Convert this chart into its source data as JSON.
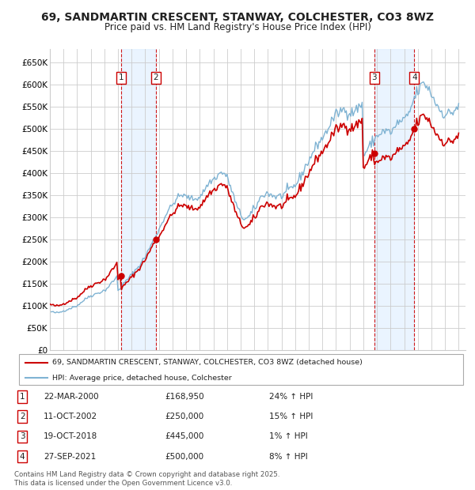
{
  "title": "69, SANDMARTIN CRESCENT, STANWAY, COLCHESTER, CO3 8WZ",
  "subtitle": "Price paid vs. HM Land Registry's House Price Index (HPI)",
  "ylim": [
    0,
    680000
  ],
  "yticks": [
    0,
    50000,
    100000,
    150000,
    200000,
    250000,
    300000,
    350000,
    400000,
    450000,
    500000,
    550000,
    600000,
    650000
  ],
  "ytick_labels": [
    "£0",
    "£50K",
    "£100K",
    "£150K",
    "£200K",
    "£250K",
    "£300K",
    "£350K",
    "£400K",
    "£450K",
    "£500K",
    "£550K",
    "£600K",
    "£650K"
  ],
  "xlim_start": 1995.0,
  "xlim_end": 2025.5,
  "xticks": [
    1995,
    1996,
    1997,
    1998,
    1999,
    2000,
    2001,
    2002,
    2003,
    2004,
    2005,
    2006,
    2007,
    2008,
    2009,
    2010,
    2011,
    2012,
    2013,
    2014,
    2015,
    2016,
    2017,
    2018,
    2019,
    2020,
    2021,
    2022,
    2023,
    2024,
    2025
  ],
  "background_color": "#ffffff",
  "grid_color": "#cccccc",
  "sale_color": "#cc0000",
  "hpi_color": "#7fb3d3",
  "sale_label": "69, SANDMARTIN CRESCENT, STANWAY, COLCHESTER, CO3 8WZ (detached house)",
  "hpi_label": "HPI: Average price, detached house, Colchester",
  "transactions": [
    {
      "num": 1,
      "date": "22-MAR-2000",
      "year": 2000.22,
      "price": 168950,
      "hpi_pct": "24%",
      "dir": "↑"
    },
    {
      "num": 2,
      "date": "11-OCT-2002",
      "year": 2002.78,
      "price": 250000,
      "hpi_pct": "15%",
      "dir": "↑"
    },
    {
      "num": 3,
      "date": "19-OCT-2018",
      "year": 2018.8,
      "price": 445000,
      "hpi_pct": "1%",
      "dir": "↑"
    },
    {
      "num": 4,
      "date": "27-SEP-2021",
      "year": 2021.74,
      "price": 500000,
      "hpi_pct": "8%",
      "dir": "↑"
    }
  ],
  "footnote": "Contains HM Land Registry data © Crown copyright and database right 2025.\nThis data is licensed under the Open Government Licence v3.0.",
  "hpi_data_monthly": {
    "start_year": 1995,
    "start_month": 1,
    "values": [
      88000,
      87000,
      86500,
      86000,
      85500,
      85000,
      85000,
      85000,
      85500,
      86000,
      87000,
      88000,
      89000,
      90000,
      91000,
      92000,
      93000,
      94000,
      95000,
      96000,
      97000,
      98000,
      99000,
      100000,
      101000,
      103000,
      105000,
      107000,
      109000,
      111000,
      113000,
      115000,
      117000,
      119000,
      121000,
      122000,
      123000,
      124000,
      125000,
      126000,
      127000,
      128000,
      129000,
      130000,
      131000,
      132000,
      133000,
      134000,
      135000,
      137000,
      139000,
      142000,
      145000,
      148000,
      151000,
      154000,
      157000,
      160000,
      163000,
      166000,
      136000,
      138000,
      141000,
      144000,
      147000,
      150000,
      153000,
      156000,
      159000,
      162000,
      165000,
      168000,
      171000,
      174000,
      177000,
      180000,
      183000,
      186000,
      189000,
      192000,
      196000,
      200000,
      204000,
      208000,
      212000,
      217000,
      222000,
      227000,
      232000,
      237000,
      242000,
      247000,
      252000,
      257000,
      262000,
      267000,
      272000,
      278000,
      283000,
      289000,
      294000,
      300000,
      305000,
      310000,
      315000,
      319000,
      322000,
      325000,
      328000,
      332000,
      336000,
      340000,
      343000,
      346000,
      348000,
      349000,
      350000,
      350000,
      349000,
      348000,
      347000,
      346000,
      345000,
      344000,
      343000,
      342000,
      342000,
      342000,
      342000,
      343000,
      344000,
      345000,
      347000,
      350000,
      353000,
      357000,
      361000,
      366000,
      370000,
      374000,
      377000,
      380000,
      382000,
      384000,
      386000,
      388000,
      390000,
      392000,
      395000,
      398000,
      400000,
      401000,
      400000,
      399000,
      398000,
      395000,
      390000,
      384000,
      377000,
      370000,
      362000,
      354000,
      346000,
      338000,
      330000,
      322000,
      316000,
      311000,
      307000,
      303000,
      300000,
      298000,
      297000,
      297000,
      298000,
      300000,
      303000,
      307000,
      311000,
      315000,
      319000,
      323000,
      327000,
      332000,
      337000,
      342000,
      346000,
      349000,
      351000,
      353000,
      354000,
      354000,
      354000,
      353000,
      352000,
      351000,
      350000,
      349000,
      348000,
      347000,
      347000,
      347000,
      347000,
      348000,
      349000,
      350000,
      352000,
      354000,
      356000,
      358000,
      360000,
      362000,
      364000,
      366000,
      368000,
      370000,
      373000,
      376000,
      380000,
      384000,
      389000,
      394000,
      399000,
      404000,
      409000,
      414000,
      419000,
      423000,
      428000,
      433000,
      438000,
      443000,
      448000,
      453000,
      458000,
      462000,
      466000,
      470000,
      473000,
      476000,
      479000,
      483000,
      487000,
      491000,
      496000,
      501000,
      506000,
      511000,
      516000,
      521000,
      525000,
      529000,
      532000,
      534000,
      536000,
      538000,
      540000,
      542000,
      543000,
      543000,
      542000,
      541000,
      539000,
      537000,
      536000,
      536000,
      537000,
      538000,
      540000,
      542000,
      544000,
      546000,
      549000,
      552000,
      554000,
      557000,
      440000,
      443000,
      447000,
      451000,
      455000,
      458000,
      462000,
      466000,
      470000,
      474000,
      477000,
      480000,
      483000,
      486000,
      488000,
      490000,
      492000,
      493000,
      494000,
      494000,
      494000,
      494000,
      493000,
      493000,
      493000,
      494000,
      496000,
      499000,
      503000,
      507000,
      511000,
      514000,
      516000,
      517000,
      518000,
      518000,
      519000,
      521000,
      524000,
      529000,
      534000,
      540000,
      547000,
      555000,
      562000,
      569000,
      575000,
      580000,
      584000,
      588000,
      593000,
      597000,
      600000,
      601000,
      601000,
      599000,
      596000,
      592000,
      588000,
      583000,
      578000,
      573000,
      568000,
      563000,
      558000,
      553000,
      549000,
      545000,
      542000,
      539000,
      537000,
      535000,
      534000,
      533000,
      533000,
      533000,
      534000,
      535000,
      537000,
      539000,
      541000,
      544000,
      547000,
      550000,
      553000
    ]
  }
}
